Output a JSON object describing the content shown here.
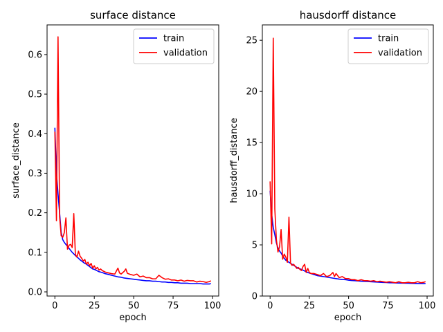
{
  "chart_data": [
    {
      "type": "line",
      "title": "surface distance",
      "xlabel": "epoch",
      "ylabel": "surface_distance",
      "xlim": [
        -4.95,
        103.95
      ],
      "ylim": [
        -0.0105,
        0.675
      ],
      "xticks": [
        0,
        25,
        50,
        75,
        100
      ],
      "yticks": [
        0.0,
        0.1,
        0.2,
        0.3,
        0.4,
        0.5,
        0.6
      ],
      "ytick_labels": [
        "0.0",
        "0.1",
        "0.2",
        "0.3",
        "0.4",
        "0.5",
        "0.6"
      ],
      "grid": false,
      "legend_position": "top-right",
      "series": [
        {
          "name": "train",
          "color": "#0000ff",
          "x": [
            0,
            1,
            2,
            3,
            4,
            5,
            6,
            7,
            8,
            9,
            10,
            11,
            12,
            13,
            14,
            15,
            16,
            17,
            18,
            19,
            20,
            21,
            22,
            23,
            24,
            25,
            26,
            27,
            28,
            29,
            30,
            32,
            34,
            36,
            38,
            40,
            42,
            44,
            46,
            48,
            50,
            52,
            54,
            56,
            58,
            60,
            62,
            64,
            66,
            68,
            70,
            72,
            74,
            76,
            78,
            80,
            82,
            84,
            86,
            88,
            90,
            92,
            94,
            96,
            98,
            99
          ],
          "y": [
            0.415,
            0.3,
            0.248,
            0.2,
            0.15,
            0.132,
            0.125,
            0.12,
            0.115,
            0.11,
            0.105,
            0.1,
            0.096,
            0.092,
            0.088,
            0.085,
            0.081,
            0.078,
            0.075,
            0.072,
            0.07,
            0.067,
            0.064,
            0.061,
            0.058,
            0.057,
            0.055,
            0.053,
            0.051,
            0.05,
            0.049,
            0.046,
            0.044,
            0.042,
            0.04,
            0.038,
            0.037,
            0.035,
            0.034,
            0.033,
            0.032,
            0.031,
            0.03,
            0.029,
            0.028,
            0.028,
            0.027,
            0.027,
            0.026,
            0.025,
            0.025,
            0.024,
            0.024,
            0.023,
            0.023,
            0.022,
            0.022,
            0.022,
            0.021,
            0.021,
            0.021,
            0.021,
            0.02,
            0.02,
            0.02,
            0.021
          ]
        },
        {
          "name": "validation",
          "color": "#ff0000",
          "x": [
            0,
            1,
            2,
            3,
            4,
            5,
            6,
            7,
            8,
            9,
            10,
            11,
            12,
            13,
            14,
            15,
            16,
            17,
            18,
            19,
            20,
            21,
            22,
            23,
            24,
            25,
            26,
            27,
            28,
            29,
            30,
            32,
            34,
            36,
            38,
            40,
            41,
            42,
            44,
            45,
            46,
            48,
            50,
            52,
            54,
            56,
            58,
            60,
            62,
            64,
            66,
            68,
            70,
            72,
            74,
            76,
            78,
            80,
            82,
            84,
            86,
            88,
            90,
            92,
            94,
            96,
            98,
            99
          ],
          "y": [
            0.405,
            0.18,
            0.645,
            0.19,
            0.142,
            0.138,
            0.15,
            0.187,
            0.108,
            0.118,
            0.12,
            0.112,
            0.198,
            0.095,
            0.088,
            0.103,
            0.09,
            0.085,
            0.078,
            0.082,
            0.07,
            0.075,
            0.066,
            0.072,
            0.06,
            0.066,
            0.058,
            0.062,
            0.055,
            0.058,
            0.054,
            0.05,
            0.048,
            0.046,
            0.045,
            0.06,
            0.048,
            0.045,
            0.052,
            0.058,
            0.047,
            0.044,
            0.042,
            0.045,
            0.038,
            0.04,
            0.036,
            0.036,
            0.033,
            0.033,
            0.042,
            0.036,
            0.032,
            0.033,
            0.03,
            0.03,
            0.028,
            0.03,
            0.027,
            0.029,
            0.028,
            0.028,
            0.025,
            0.027,
            0.026,
            0.024,
            0.026,
            0.028
          ]
        }
      ]
    },
    {
      "type": "line",
      "title": "hausdorff distance",
      "xlabel": "epoch",
      "ylabel": "hausdorff_distance",
      "xlim": [
        -4.95,
        103.95
      ],
      "ylim": [
        0,
        26.5
      ],
      "xticks": [
        0,
        25,
        50,
        75,
        100
      ],
      "yticks": [
        0,
        5,
        10,
        15,
        20,
        25
      ],
      "ytick_labels": [
        "0",
        "5",
        "10",
        "15",
        "20",
        "25"
      ],
      "grid": false,
      "legend_position": "top-right",
      "series": [
        {
          "name": "train",
          "color": "#0000ff",
          "x": [
            0,
            1,
            2,
            3,
            4,
            5,
            6,
            7,
            8,
            9,
            10,
            11,
            12,
            13,
            14,
            15,
            16,
            17,
            18,
            19,
            20,
            22,
            24,
            26,
            28,
            30,
            32,
            34,
            36,
            38,
            40,
            42,
            44,
            46,
            48,
            50,
            52,
            54,
            56,
            58,
            60,
            62,
            64,
            66,
            68,
            70,
            72,
            74,
            76,
            78,
            80,
            82,
            84,
            86,
            88,
            90,
            92,
            94,
            96,
            98,
            99
          ],
          "y": [
            10.3,
            8.0,
            6.7,
            6.0,
            5.2,
            4.7,
            4.4,
            4.2,
            3.9,
            3.7,
            3.5,
            3.4,
            3.3,
            3.2,
            3.1,
            3.0,
            2.9,
            2.8,
            2.7,
            2.65,
            2.6,
            2.45,
            2.3,
            2.2,
            2.1,
            2.0,
            1.95,
            1.9,
            1.85,
            1.8,
            1.75,
            1.7,
            1.65,
            1.62,
            1.6,
            1.55,
            1.52,
            1.5,
            1.47,
            1.45,
            1.43,
            1.42,
            1.4,
            1.38,
            1.36,
            1.35,
            1.33,
            1.32,
            1.3,
            1.3,
            1.28,
            1.27,
            1.26,
            1.25,
            1.25,
            1.24,
            1.23,
            1.22,
            1.22,
            1.21,
            1.22
          ]
        },
        {
          "name": "validation",
          "color": "#ff0000",
          "x": [
            0,
            1,
            2,
            3,
            4,
            5,
            6,
            7,
            8,
            9,
            10,
            11,
            12,
            13,
            14,
            15,
            16,
            17,
            18,
            19,
            20,
            21,
            22,
            23,
            24,
            25,
            26,
            28,
            30,
            32,
            34,
            36,
            38,
            40,
            41,
            42,
            44,
            46,
            48,
            50,
            52,
            54,
            56,
            58,
            60,
            62,
            64,
            66,
            68,
            70,
            72,
            74,
            76,
            78,
            80,
            82,
            84,
            86,
            88,
            90,
            92,
            94,
            96,
            98,
            99
          ],
          "y": [
            11.2,
            5.1,
            25.2,
            8.5,
            5.5,
            4.3,
            4.8,
            6.5,
            3.6,
            4.1,
            3.8,
            3.3,
            7.7,
            3.2,
            3.0,
            3.1,
            2.9,
            2.7,
            2.8,
            2.6,
            2.5,
            2.9,
            3.1,
            2.3,
            2.7,
            2.3,
            2.2,
            2.2,
            2.1,
            2.0,
            2.2,
            1.9,
            2.0,
            2.3,
            1.9,
            2.2,
            1.8,
            1.9,
            1.7,
            1.7,
            1.6,
            1.6,
            1.5,
            1.6,
            1.5,
            1.5,
            1.45,
            1.5,
            1.4,
            1.45,
            1.4,
            1.35,
            1.4,
            1.35,
            1.3,
            1.4,
            1.3,
            1.3,
            1.35,
            1.3,
            1.3,
            1.4,
            1.3,
            1.35,
            1.4
          ]
        }
      ]
    }
  ]
}
